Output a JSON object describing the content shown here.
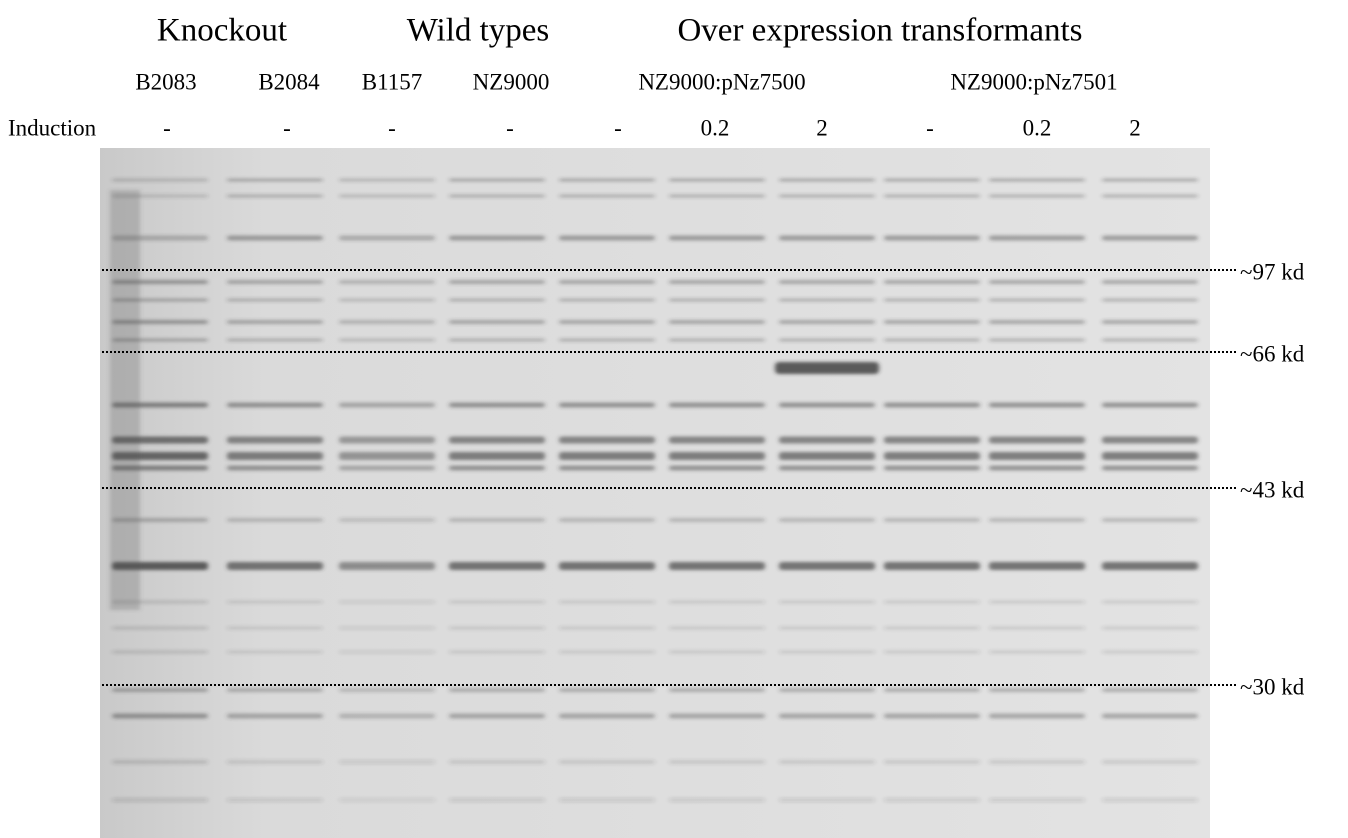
{
  "groups": [
    {
      "label": "Knockout"
    },
    {
      "label": "Wild types"
    },
    {
      "label": "Over expression transformants"
    }
  ],
  "lanes": [
    "B2083",
    "B2084",
    "B1157",
    "NZ9000",
    "NZ9000:pNz7500",
    "NZ9000:pNz7501"
  ],
  "induction": {
    "label": "Induction",
    "values": [
      "-",
      "-",
      "-",
      "-",
      "-",
      "0.2",
      "2",
      "-",
      "0.2",
      "2"
    ]
  },
  "markers": [
    "~97 kd",
    "~66 kd",
    "~43 kd",
    "~30 kd"
  ]
}
